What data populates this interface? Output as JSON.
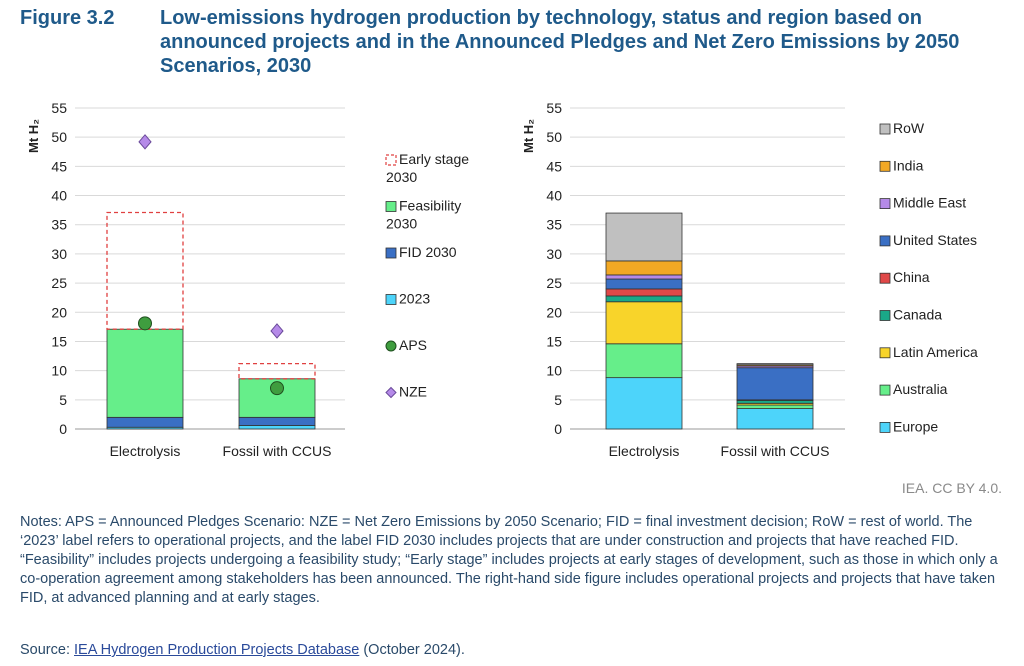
{
  "figure": {
    "label": "Figure 3.2",
    "title": "Low-emissions hydrogen production by technology, status and region based on announced projects and in the Announced Pledges and Net Zero Emissions by 2050 Scenarios, 2030"
  },
  "chart_data": [
    {
      "type": "bar",
      "stacked": true,
      "ylabel": "Mt H₂",
      "ylim": [
        0,
        55
      ],
      "yticks": [
        0,
        5,
        10,
        15,
        20,
        25,
        30,
        35,
        40,
        45,
        50,
        55
      ],
      "grid": true,
      "legend_position": "right",
      "categories": [
        "Electrolysis",
        "Fossil with CCUS"
      ],
      "series": [
        {
          "name": "2023",
          "values": [
            0.3,
            0.6
          ],
          "color": "#4dd4fa"
        },
        {
          "name": "FID 2030",
          "values": [
            1.7,
            1.4
          ],
          "color": "#3a6fc4"
        },
        {
          "name": "Feasibility 2030",
          "values": [
            15.1,
            6.6
          ],
          "color": "#66ee8a"
        },
        {
          "name": "Early stage 2030",
          "values": [
            20.0,
            2.6
          ],
          "color": "#e04040",
          "style": "dashed-outline"
        }
      ],
      "markers": [
        {
          "name": "APS",
          "values": [
            18.1,
            7.0
          ],
          "shape": "circle",
          "color": "#3f9d3f"
        },
        {
          "name": "NZE",
          "values": [
            49.2,
            16.8
          ],
          "shape": "diamond",
          "color": "#b58ae8"
        }
      ],
      "legend": [
        {
          "label": "Early stage 2030",
          "kind": "dashed"
        },
        {
          "label": "Feasibility 2030",
          "kind": "fill",
          "color": "#66ee8a"
        },
        {
          "label": "FID 2030",
          "kind": "fill",
          "color": "#3a6fc4"
        },
        {
          "label": "2023",
          "kind": "fill",
          "color": "#4dd4fa"
        },
        {
          "label": "APS",
          "kind": "circle",
          "color": "#3f9d3f"
        },
        {
          "label": "NZE",
          "kind": "diamond",
          "color": "#b58ae8"
        }
      ]
    },
    {
      "type": "bar",
      "stacked": true,
      "ylabel": "Mt H₂",
      "ylim": [
        0,
        55
      ],
      "yticks": [
        0,
        5,
        10,
        15,
        20,
        25,
        30,
        35,
        40,
        45,
        50,
        55
      ],
      "grid": true,
      "legend_position": "right",
      "categories": [
        "Electrolysis",
        "Fossil with CCUS"
      ],
      "series": [
        {
          "name": "Europe",
          "values": [
            8.8,
            3.5
          ],
          "color": "#4dd4fa"
        },
        {
          "name": "Australia",
          "values": [
            5.8,
            0.6
          ],
          "color": "#66ee8a"
        },
        {
          "name": "Latin America",
          "values": [
            7.2,
            0.3
          ],
          "color": "#f8d42a"
        },
        {
          "name": "Canada",
          "values": [
            1.0,
            0.5
          ],
          "color": "#1aa888"
        },
        {
          "name": "China",
          "values": [
            1.2,
            0.1
          ],
          "color": "#e04848"
        },
        {
          "name": "United States",
          "values": [
            1.7,
            5.5
          ],
          "color": "#3a6fc4"
        },
        {
          "name": "Middle East",
          "values": [
            0.7,
            0.3
          ],
          "color": "#b58ae8"
        },
        {
          "name": "India",
          "values": [
            2.4,
            0.2
          ],
          "color": "#f2a824"
        },
        {
          "name": "RoW",
          "values": [
            8.2,
            0.2
          ],
          "color": "#c0c0c0"
        }
      ],
      "legend": [
        {
          "label": "RoW",
          "color": "#c0c0c0"
        },
        {
          "label": "India",
          "color": "#f2a824"
        },
        {
          "label": "Middle East",
          "color": "#b58ae8"
        },
        {
          "label": "United States",
          "color": "#3a6fc4"
        },
        {
          "label": "China",
          "color": "#e04848"
        },
        {
          "label": "Canada",
          "color": "#1aa888"
        },
        {
          "label": "Latin America",
          "color": "#f8d42a"
        },
        {
          "label": "Australia",
          "color": "#66ee8a"
        },
        {
          "label": "Europe",
          "color": "#4dd4fa"
        }
      ]
    }
  ],
  "credit": "IEA. CC BY 4.0.",
  "notes": "Notes: APS = Announced Pledges Scenario: NZE = Net Zero Emissions by 2050 Scenario; FID = final investment decision; RoW = rest of world. The ‘2023’ label refers to operational projects, and the label FID 2030 includes projects that are under construction and projects that have reached FID. “Feasibility” includes projects undergoing a feasibility study; “Early stage” includes projects at early stages of development, such as those in which only a co-operation agreement among stakeholders has been announced. The right-hand side figure includes operational projects and projects that have taken FID, at advanced planning and at early stages.",
  "source": {
    "prefix": "Source: ",
    "link_text": "IEA Hydrogen Production Projects Database",
    "suffix": " (October 2024)."
  }
}
